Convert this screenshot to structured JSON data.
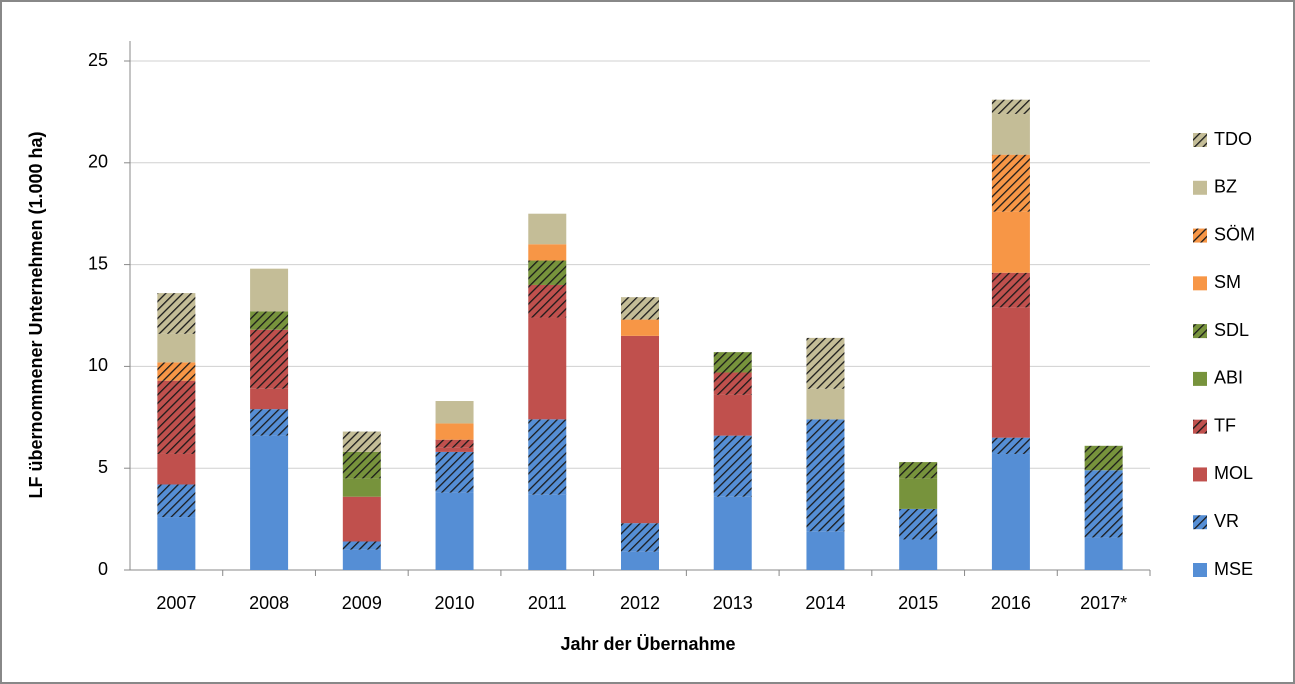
{
  "chart_data": {
    "type": "stacked_bar",
    "xlabel": "Jahr der Übernahme",
    "ylabel": "LF übernommener Unternehmen (1.000 ha)",
    "categories": [
      "2007",
      "2008",
      "2009",
      "2010",
      "2011",
      "2012",
      "2013",
      "2014",
      "2015",
      "2016",
      "2017*"
    ],
    "ylim": [
      0,
      25
    ],
    "yticks": [
      0,
      5,
      10,
      15,
      20,
      25
    ],
    "grid": true,
    "legend": "right",
    "series": [
      {
        "name": "MSE",
        "color": "#558ed5",
        "hatched": false,
        "values": [
          2.6,
          6.6,
          1.0,
          3.8,
          3.7,
          0.9,
          3.6,
          1.9,
          1.5,
          5.7,
          1.6
        ]
      },
      {
        "name": "VR",
        "color": "#558ed5",
        "hatched": true,
        "values": [
          1.6,
          1.3,
          0.4,
          2.0,
          3.7,
          1.4,
          3.0,
          5.5,
          1.5,
          0.8,
          3.3
        ]
      },
      {
        "name": "MOL",
        "color": "#c0504d",
        "hatched": false,
        "values": [
          1.5,
          1.0,
          2.2,
          0.2,
          5.0,
          9.2,
          2.0,
          0,
          0,
          6.4,
          0
        ]
      },
      {
        "name": "TF",
        "color": "#c0504d",
        "hatched": true,
        "values": [
          3.6,
          2.9,
          0,
          0.4,
          1.6,
          0,
          1.1,
          0,
          0,
          1.7,
          0
        ]
      },
      {
        "name": "ABI",
        "color": "#77933c",
        "hatched": false,
        "values": [
          0,
          0,
          0.9,
          0,
          0,
          0,
          0,
          0,
          1.5,
          0,
          0
        ]
      },
      {
        "name": "SDL",
        "color": "#77933c",
        "hatched": true,
        "values": [
          0,
          0.9,
          1.3,
          0,
          1.2,
          0,
          1.0,
          0,
          0.8,
          0,
          1.2
        ]
      },
      {
        "name": "SM",
        "color": "#f79646",
        "hatched": false,
        "values": [
          0,
          0,
          0,
          0.8,
          0.8,
          0.8,
          0,
          0,
          0,
          3.0,
          0
        ]
      },
      {
        "name": "SÖM",
        "color": "#f79646",
        "hatched": true,
        "values": [
          0.9,
          0,
          0,
          0,
          0,
          0,
          0,
          0,
          0,
          2.8,
          0
        ]
      },
      {
        "name": "BZ",
        "color": "#c4bd97",
        "hatched": false,
        "values": [
          1.4,
          2.1,
          0,
          1.1,
          1.5,
          0,
          0,
          1.5,
          0,
          2.0,
          0
        ]
      },
      {
        "name": "TDO",
        "color": "#c4bd97",
        "hatched": true,
        "values": [
          2.0,
          0,
          1.0,
          0,
          0,
          1.1,
          0,
          2.5,
          0,
          0.7,
          0
        ]
      }
    ]
  }
}
